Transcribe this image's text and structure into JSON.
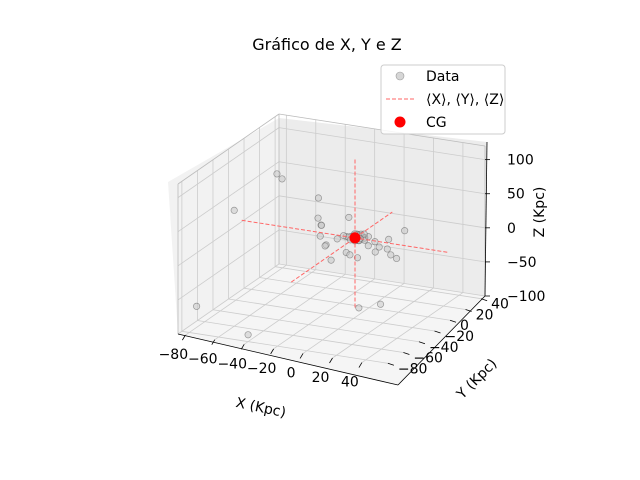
{
  "chart_data": {
    "type": "scatter",
    "projection": "3d",
    "title": "Gráfico de X, Y e Z",
    "xlabel": "X (Kpc)",
    "ylabel": "Y (Kpc)",
    "zlabel": "Z (Kpc)",
    "xlim": [
      -85,
      55
    ],
    "ylim": [
      -85,
      45
    ],
    "zlim": [
      -100,
      120
    ],
    "xticks": [
      "−80",
      "−60",
      "−40",
      "−20",
      "0",
      "20",
      "40"
    ],
    "yticks": [
      "−80",
      "−60",
      "−40",
      "−20",
      "0",
      "20",
      "40"
    ],
    "zticks": [
      "−100",
      "−50",
      "0",
      "50",
      "100"
    ],
    "grid": true,
    "legend_position": "top-right",
    "legend": [
      "Data",
      "⟨X⟩, ⟨Y⟩, ⟨Z⟩",
      "CG"
    ],
    "colors": {
      "data": "#bbbbbb",
      "mean_lines": "#ff6666",
      "cg": "#ff0000",
      "grid": "#cccccc"
    },
    "series": [
      {
        "name": "Data",
        "points": [
          [
            -8,
            0,
            0
          ],
          [
            -7,
            1,
            2
          ],
          [
            -9,
            -1,
            -1
          ],
          [
            -6,
            2,
            1
          ],
          [
            -10,
            0,
            3
          ],
          [
            -8,
            -2,
            -2
          ],
          [
            -7,
            3,
            0
          ],
          [
            -9,
            1,
            -3
          ],
          [
            -5,
            -1,
            2
          ],
          [
            -11,
            2,
            1
          ],
          [
            -8,
            1,
            4
          ],
          [
            -6,
            -3,
            -1
          ],
          [
            -10,
            -2,
            2
          ],
          [
            -7,
            0,
            -4
          ],
          [
            -9,
            3,
            1
          ],
          [
            -4,
            2,
            0
          ],
          [
            -12,
            0,
            0
          ],
          [
            -8,
            4,
            -1
          ],
          [
            -6,
            1,
            5
          ],
          [
            -7,
            -4,
            1
          ],
          [
            -9,
            -3,
            3
          ],
          [
            -5,
            3,
            -2
          ],
          [
            -11,
            -1,
            -2
          ],
          [
            -3,
            0,
            1
          ],
          [
            -13,
            1,
            -1
          ],
          [
            -8,
            -1,
            6
          ],
          [
            -2,
            -2,
            0
          ],
          [
            -14,
            -3,
            2
          ],
          [
            -1,
            1,
            3
          ],
          [
            -15,
            2,
            -3
          ],
          [
            -6,
            5,
            2
          ],
          [
            -10,
            -5,
            0
          ],
          [
            -8,
            2,
            -6
          ],
          [
            -4,
            -4,
            3
          ],
          [
            -12,
            4,
            1
          ],
          [
            5,
            -2,
            0
          ],
          [
            10,
            -6,
            -3
          ],
          [
            15,
            -5,
            -5
          ],
          [
            20,
            -10,
            -8
          ],
          [
            25,
            -12,
            -10
          ],
          [
            -20,
            5,
            -5
          ],
          [
            -25,
            -8,
            -10
          ],
          [
            -15,
            10,
            -15
          ],
          [
            -22,
            -15,
            -5
          ],
          [
            -5,
            -20,
            -5
          ],
          [
            -30,
            -5,
            15
          ],
          [
            -18,
            8,
            20
          ],
          [
            -10,
            -30,
            -10
          ],
          [
            -12,
            -2,
            -25
          ],
          [
            0,
            -15,
            -15
          ],
          [
            -35,
            5,
            5
          ],
          [
            -40,
            10,
            10
          ],
          [
            -20,
            -25,
            18
          ],
          [
            10,
            -20,
            10
          ],
          [
            8,
            10,
            -5
          ],
          [
            -28,
            12,
            -18
          ],
          [
            -45,
            20,
            30
          ],
          [
            20,
            -30,
            12
          ],
          [
            40,
            -30,
            50
          ],
          [
            -60,
            -5,
            80
          ],
          [
            -60,
            -60,
            70
          ],
          [
            50,
            -80,
            -15
          ],
          [
            -75,
            30,
            40
          ],
          [
            -40,
            -80,
            -90
          ],
          [
            -75,
            -80,
            -60
          ],
          [
            30,
            -70,
            -35
          ]
        ]
      },
      {
        "name": "⟨X⟩, ⟨Y⟩, ⟨Z⟩",
        "mean": [
          -8,
          -3,
          2
        ]
      },
      {
        "name": "CG",
        "points": [
          [
            -8,
            -3,
            2
          ]
        ]
      }
    ]
  }
}
